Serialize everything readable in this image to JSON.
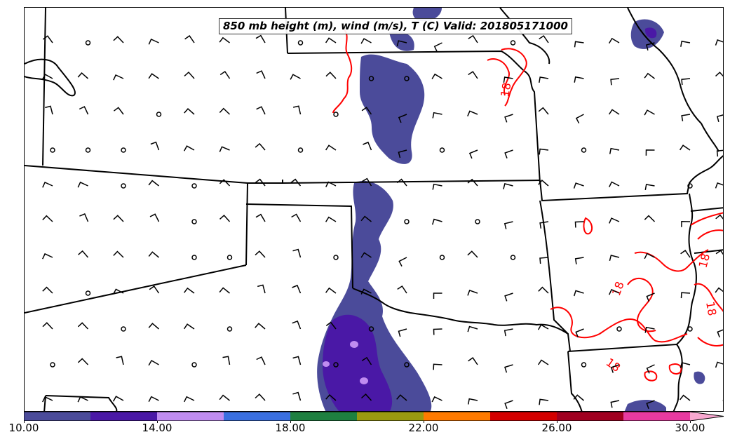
{
  "title": "850 mb height (m), wind (m/s), T (C) Valid: 201805171000",
  "contour_labels": [
    {
      "text": "18",
      "color": "#ff0000"
    },
    {
      "text": "18",
      "color": "#ff0000"
    },
    {
      "text": "18",
      "color": "#ff0000"
    },
    {
      "text": "18",
      "color": "#ff0000"
    },
    {
      "text": "18",
      "color": "#ff0000"
    }
  ],
  "colorbar": {
    "min": 10.0,
    "max": 30.0,
    "tick_labels": [
      "10.00",
      "14.00",
      "18.00",
      "22.00",
      "26.00",
      "30.00"
    ],
    "bins": [
      {
        "from": 10,
        "to": 12,
        "color": "#4b4b9a"
      },
      {
        "from": 12,
        "to": 14,
        "color": "#4a18a6"
      },
      {
        "from": 14,
        "to": 16,
        "color": "#c08cf0"
      },
      {
        "from": 16,
        "to": 18,
        "color": "#3a6fe0"
      },
      {
        "from": 18,
        "to": 20,
        "color": "#1e8040"
      },
      {
        "from": 20,
        "to": 22,
        "color": "#9a9a10"
      },
      {
        "from": 22,
        "to": 24,
        "color": "#ff7a00"
      },
      {
        "from": 24,
        "to": 26,
        "color": "#d40000"
      },
      {
        "from": 26,
        "to": 28,
        "color": "#a00020"
      },
      {
        "from": 28,
        "to": 30,
        "color": "#e83aa0"
      }
    ],
    "overflow_color": "#f8a8d0"
  }
}
